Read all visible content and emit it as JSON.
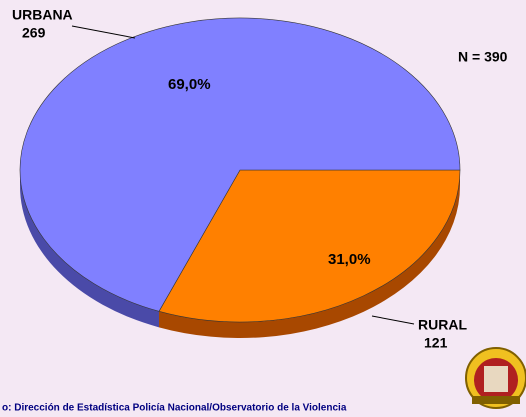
{
  "chart_data": {
    "type": "pie",
    "categories": [
      "URBANA",
      "RURAL"
    ],
    "values": [
      69.0,
      31.0
    ],
    "value_labels": [
      "69,0%",
      "31,0%"
    ],
    "counts": [
      269,
      121
    ],
    "colors": [
      "#8080ff",
      "#ff8000"
    ],
    "side_colors": [
      "#4a4aa8",
      "#a84800"
    ],
    "annotation": "N = 390",
    "source": "o: Dirección de Estadística Policía Nacional/Observatorio de la Violencia"
  }
}
